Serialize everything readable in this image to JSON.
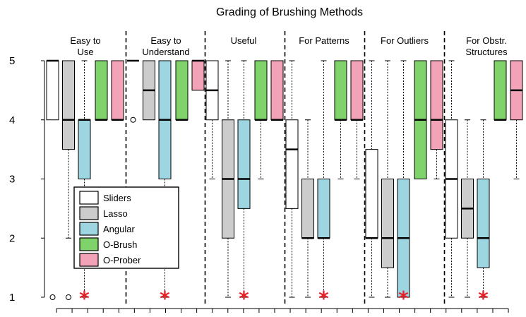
{
  "chart_data": {
    "type": "boxplot",
    "title": "Grading of Brushing Methods",
    "ylim": [
      1,
      5
    ],
    "yticks": [
      1,
      2,
      3,
      4,
      5
    ],
    "grid": false,
    "legend_position": "lower-left",
    "series": [
      {
        "name": "Sliders",
        "color": "#ffffff"
      },
      {
        "name": "Lasso",
        "color": "#cccccc"
      },
      {
        "name": "Angular",
        "color": "#9dd5e0"
      },
      {
        "name": "O-Brush",
        "color": "#7fd36a"
      },
      {
        "name": "O-Prober",
        "color": "#f2a3b8"
      }
    ],
    "panels": [
      {
        "label_lines": [
          "Easy to",
          "Use"
        ],
        "boxes": [
          {
            "series": "Sliders",
            "q1": 4,
            "median": 5,
            "q3": 5,
            "wlo": 4,
            "whi": 5,
            "outliers": [
              1
            ]
          },
          {
            "series": "Lasso",
            "q1": 3.5,
            "median": 4,
            "q3": 5,
            "wlo": 2,
            "whi": 5,
            "outliers": [
              1
            ]
          },
          {
            "series": "Angular",
            "q1": 3,
            "median": 4,
            "q3": 4,
            "wlo": 1,
            "whi": 5,
            "outliers": [],
            "mean": 1
          },
          {
            "series": "O-Brush",
            "q1": 4,
            "median": 4,
            "q3": 5,
            "wlo": 4,
            "whi": 5,
            "outliers": []
          },
          {
            "series": "O-Prober",
            "q1": 4,
            "median": 4,
            "q3": 5,
            "wlo": 4,
            "whi": 5,
            "outliers": []
          }
        ]
      },
      {
        "label_lines": [
          "Easy to",
          "Understand"
        ],
        "boxes": [
          {
            "series": "Sliders",
            "q1": 5,
            "median": 5,
            "q3": 5,
            "wlo": 5,
            "whi": 5,
            "outliers": [
              4
            ]
          },
          {
            "series": "Lasso",
            "q1": 4,
            "median": 4.5,
            "q3": 5,
            "wlo": 4,
            "whi": 5,
            "outliers": []
          },
          {
            "series": "Angular",
            "q1": 3,
            "median": 4,
            "q3": 5,
            "wlo": 1,
            "whi": 5,
            "outliers": [],
            "mean": 1
          },
          {
            "series": "O-Brush",
            "q1": 4,
            "median": 4,
            "q3": 5,
            "wlo": 4,
            "whi": 5,
            "outliers": []
          },
          {
            "series": "O-Prober",
            "q1": 4.5,
            "median": 5,
            "q3": 5,
            "wlo": 4.5,
            "whi": 5,
            "outliers": []
          }
        ]
      },
      {
        "label_lines": [
          "Useful"
        ],
        "boxes": [
          {
            "series": "Sliders",
            "q1": 4,
            "median": 4.5,
            "q3": 5,
            "wlo": 3,
            "whi": 5,
            "outliers": []
          },
          {
            "series": "Lasso",
            "q1": 2,
            "median": 3,
            "q3": 4,
            "wlo": 1,
            "whi": 5,
            "outliers": []
          },
          {
            "series": "Angular",
            "q1": 2.5,
            "median": 3,
            "q3": 4,
            "wlo": 1,
            "whi": 5,
            "outliers": [],
            "mean": 1
          },
          {
            "series": "O-Brush",
            "q1": 4,
            "median": 4,
            "q3": 5,
            "wlo": 3,
            "whi": 5,
            "outliers": []
          },
          {
            "series": "O-Prober",
            "q1": 4,
            "median": 4,
            "q3": 5,
            "wlo": 4,
            "whi": 5,
            "outliers": []
          }
        ]
      },
      {
        "label_lines": [
          "For Patterns"
        ],
        "boxes": [
          {
            "series": "Sliders",
            "q1": 2.5,
            "median": 3.5,
            "q3": 4,
            "wlo": 1,
            "whi": 5,
            "outliers": []
          },
          {
            "series": "Lasso",
            "q1": 2,
            "median": 2,
            "q3": 3,
            "wlo": 1,
            "whi": 4,
            "outliers": []
          },
          {
            "series": "Angular",
            "q1": 2,
            "median": 2,
            "q3": 3,
            "wlo": 1,
            "whi": 5,
            "outliers": [],
            "mean": 1
          },
          {
            "series": "O-Brush",
            "q1": 4,
            "median": 4,
            "q3": 5,
            "wlo": 3,
            "whi": 5,
            "outliers": []
          },
          {
            "series": "O-Prober",
            "q1": 4,
            "median": 4,
            "q3": 5,
            "wlo": 3,
            "whi": 5,
            "outliers": []
          }
        ]
      },
      {
        "label_lines": [
          "For Outliers"
        ],
        "boxes": [
          {
            "series": "Sliders",
            "q1": 2,
            "median": 2,
            "q3": 3.5,
            "wlo": 1,
            "whi": 5,
            "outliers": []
          },
          {
            "series": "Lasso",
            "q1": 1.5,
            "median": 2,
            "q3": 3,
            "wlo": 1,
            "whi": 5,
            "outliers": []
          },
          {
            "series": "Angular",
            "q1": 1,
            "median": 2,
            "q3": 3,
            "wlo": 1,
            "whi": 5,
            "outliers": [],
            "mean": 1
          },
          {
            "series": "O-Brush",
            "q1": 3,
            "median": 4,
            "q3": 5,
            "wlo": 3,
            "whi": 5,
            "outliers": []
          },
          {
            "series": "O-Prober",
            "q1": 3.5,
            "median": 4,
            "q3": 5,
            "wlo": 3,
            "whi": 5,
            "outliers": []
          }
        ]
      },
      {
        "label_lines": [
          "For Obstr.",
          "Structures"
        ],
        "boxes": [
          {
            "series": "Sliders",
            "q1": 2,
            "median": 3,
            "q3": 4,
            "wlo": 1,
            "whi": 5,
            "outliers": []
          },
          {
            "series": "Lasso",
            "q1": 2,
            "median": 2.5,
            "q3": 3,
            "wlo": 1,
            "whi": 4,
            "outliers": []
          },
          {
            "series": "Angular",
            "q1": 1.5,
            "median": 2,
            "q3": 3,
            "wlo": 1,
            "whi": 4,
            "outliers": [],
            "mean": 1
          },
          {
            "series": "O-Brush",
            "q1": 4,
            "median": 4,
            "q3": 5,
            "wlo": 4,
            "whi": 5,
            "outliers": []
          },
          {
            "series": "O-Prober",
            "q1": 4,
            "median": 4.5,
            "q3": 5,
            "wlo": 3,
            "whi": 5,
            "outliers": []
          }
        ]
      }
    ]
  }
}
